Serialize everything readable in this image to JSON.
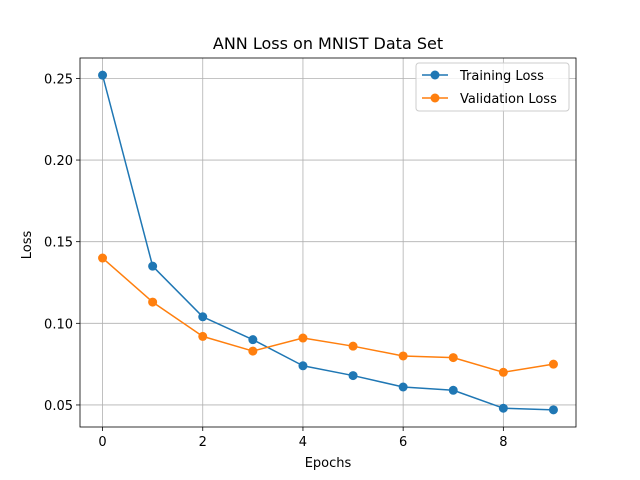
{
  "chart_data": {
    "type": "line",
    "title": "ANN Loss on MNIST Data Set",
    "xlabel": "Epochs",
    "ylabel": "Loss",
    "x": [
      0,
      1,
      2,
      3,
      4,
      5,
      6,
      7,
      8,
      9
    ],
    "xlim": [
      -0.45,
      9.45
    ],
    "ylim": [
      0.0365,
      0.2625
    ],
    "xticks": [
      0,
      2,
      4,
      6,
      8
    ],
    "yticks": [
      0.05,
      0.1,
      0.15,
      0.2,
      0.25
    ],
    "xtick_labels": [
      "0",
      "2",
      "4",
      "6",
      "8"
    ],
    "ytick_labels": [
      "0.05",
      "0.10",
      "0.15",
      "0.20",
      "0.25"
    ],
    "grid": true,
    "legend_position": "top-right",
    "series": [
      {
        "name": "Training Loss",
        "color": "#1f77b4",
        "marker": "circle",
        "values": [
          0.252,
          0.135,
          0.104,
          0.09,
          0.074,
          0.068,
          0.061,
          0.059,
          0.048,
          0.047
        ]
      },
      {
        "name": "Validation Loss",
        "color": "#ff7f0e",
        "marker": "circle",
        "values": [
          0.14,
          0.113,
          0.092,
          0.083,
          0.091,
          0.086,
          0.08,
          0.079,
          0.07,
          0.075
        ]
      }
    ]
  }
}
